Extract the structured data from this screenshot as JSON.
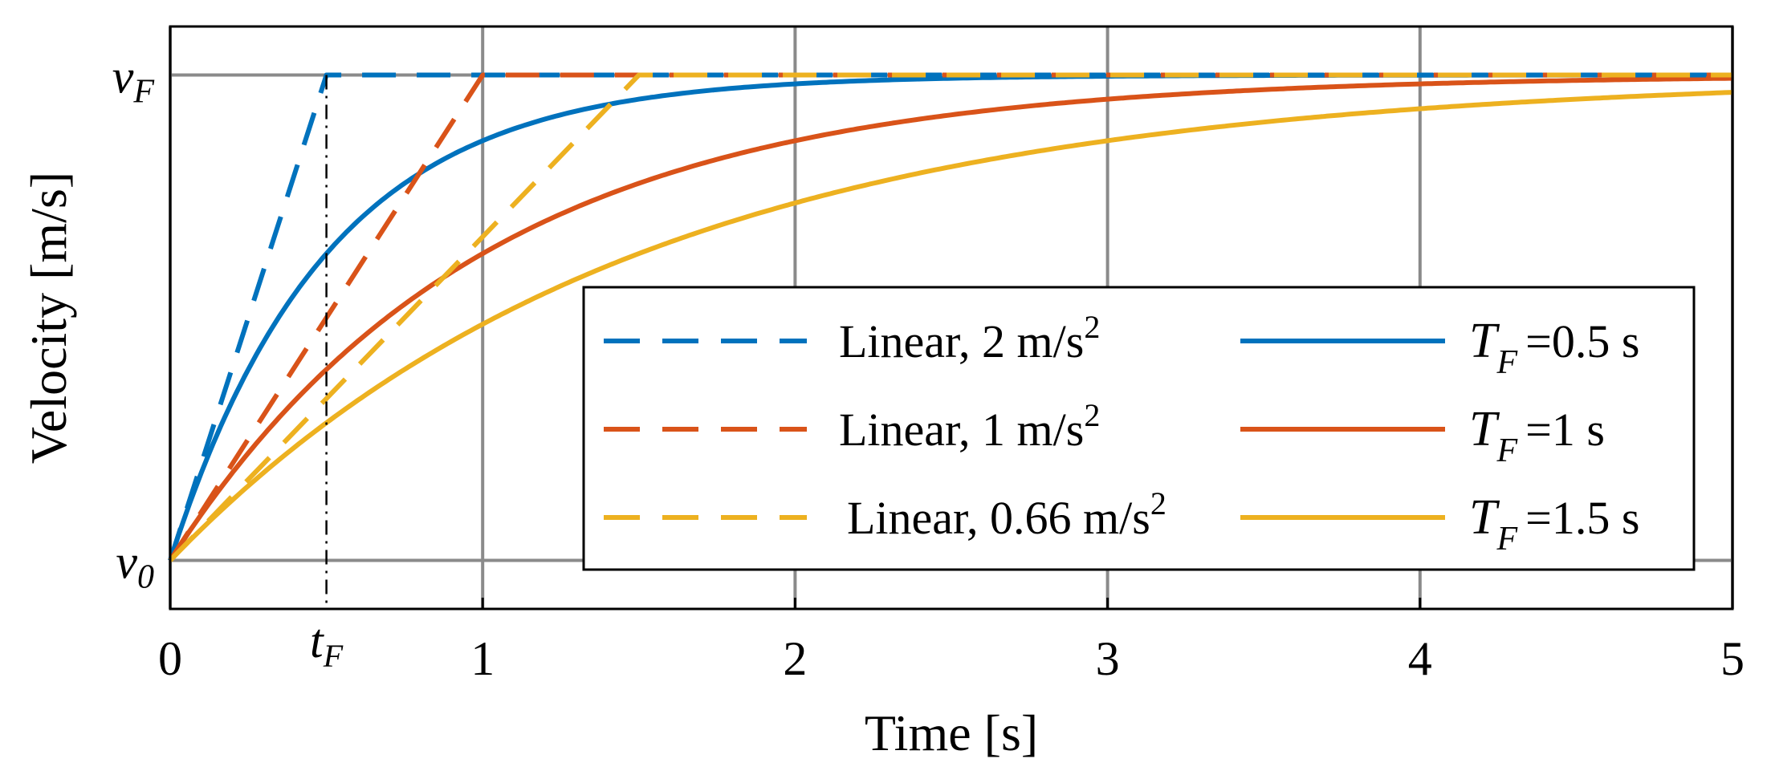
{
  "chart_data": {
    "type": "line",
    "xlabel": "Time [s]",
    "ylabel": "Velocity [m/s]",
    "xlim": [
      0,
      5
    ],
    "ylim": [
      -0.1,
      1.1
    ],
    "x_ticks": [
      0,
      1,
      2,
      3,
      4,
      5
    ],
    "x_tick_labels": [
      "0",
      "1",
      "2",
      "3",
      "4",
      "5"
    ],
    "y_marks": [
      {
        "value": 0,
        "symbol": "v",
        "subscript": "0"
      },
      {
        "value": 1,
        "symbol": "v",
        "subscript": "F"
      }
    ],
    "t_marker": {
      "x": 0.5,
      "symbol": "t",
      "subscript": "F"
    },
    "grid": true,
    "legend_position": "bottom-right",
    "series": [
      {
        "name": "Linear, 2 m/s",
        "superscript": "2",
        "kind": "linear",
        "accel": 2,
        "reach_time": 0.5,
        "color": "#0072BD",
        "dashed": true
      },
      {
        "name": "Linear, 1 m/s",
        "superscript": "2",
        "kind": "linear",
        "accel": 1,
        "reach_time": 1.0,
        "color": "#D95319",
        "dashed": true
      },
      {
        "name": "Linear, 0.66 m/s",
        "superscript": "2",
        "kind": "linear",
        "accel": 0.66,
        "reach_time": 1.5,
        "color": "#EDB120",
        "dashed": true
      },
      {
        "name": "=0.5 s",
        "symbol": "T",
        "subscript": "F",
        "kind": "exponential",
        "time_constant": 0.5,
        "color": "#0072BD",
        "dashed": false
      },
      {
        "name": "=1 s",
        "symbol": "T",
        "subscript": "F",
        "kind": "exponential",
        "time_constant": 1.0,
        "color": "#D95319",
        "dashed": false
      },
      {
        "name": "=1.5 s",
        "symbol": "T",
        "subscript": "F",
        "kind": "exponential",
        "time_constant": 1.5,
        "color": "#EDB120",
        "dashed": false
      }
    ]
  }
}
